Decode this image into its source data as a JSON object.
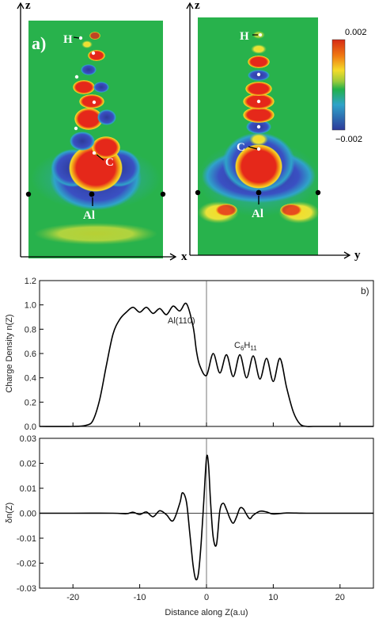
{
  "figure": {
    "panel_a": {
      "panel_label": "a)",
      "left_map": {
        "axis_vertical": "z",
        "axis_horizontal": "x",
        "atom_labels": {
          "h": "H",
          "c": "C",
          "al": "Al"
        }
      },
      "right_map": {
        "axis_vertical": "z",
        "axis_horizontal": "y",
        "atom_labels": {
          "h": "H",
          "c": "C",
          "al": "Al"
        }
      },
      "colorbar": {
        "max_label": "0.002",
        "min_label": "−0.002",
        "colors": [
          "#d62a14",
          "#f07a12",
          "#f4dc2a",
          "#9ccb3a",
          "#21b14b",
          "#2fa3c9",
          "#2e3a9a"
        ]
      },
      "map_colors": {
        "background": "#28b24c",
        "red": "#e5281a",
        "blue": "#3a50c2",
        "yellow": "#f4dc2a",
        "orange": "#f39a18"
      }
    },
    "panel_b": {
      "panel_label": "b)"
    }
  },
  "chart_data": [
    {
      "type": "line",
      "title": "",
      "xlabel": "",
      "ylabel": "Charge Density n(Z)",
      "xlim": [
        -25,
        25
      ],
      "ylim": [
        0,
        1.2
      ],
      "xticks": [
        -20,
        -10,
        0,
        10,
        20
      ],
      "yticks": [
        0.0,
        0.2,
        0.4,
        0.6,
        0.8,
        1.0,
        1.2
      ],
      "ytick_labels": [
        "0.0",
        "0.2",
        "0.4",
        "0.6",
        "0.8",
        "1.0",
        "1.2"
      ],
      "reference_line_x": 0,
      "annotations": [
        {
          "text": "Al(110)",
          "x": -7,
          "y": 1.06
        },
        {
          "text_parts": [
            "C",
            "6",
            "H",
            "11"
          ],
          "x": 6.7,
          "y": 0.62
        }
      ],
      "series": [
        {
          "x": [
            -25,
            -20,
            -18,
            -17,
            -16,
            -15,
            -14,
            -13,
            -12,
            -11,
            -10,
            -9,
            -8,
            -7,
            -6,
            -5,
            -4,
            -3,
            -2,
            -1.5,
            -1,
            0,
            1,
            2,
            3,
            4,
            5,
            6,
            7,
            8,
            9,
            10,
            11,
            12,
            13,
            14,
            15,
            16,
            20,
            25
          ],
          "y": [
            0,
            0,
            0.01,
            0.05,
            0.22,
            0.5,
            0.76,
            0.88,
            0.94,
            0.98,
            0.94,
            0.98,
            0.93,
            0.97,
            0.92,
            0.99,
            0.95,
            1.01,
            0.82,
            0.62,
            0.5,
            0.42,
            0.6,
            0.44,
            0.59,
            0.41,
            0.59,
            0.4,
            0.58,
            0.39,
            0.56,
            0.37,
            0.56,
            0.32,
            0.12,
            0.02,
            0,
            0,
            0,
            0
          ]
        }
      ]
    },
    {
      "type": "line",
      "title": "",
      "xlabel": "Distance along Z(a.u)",
      "ylabel": "δn(Z)",
      "xlim": [
        -25,
        25
      ],
      "ylim": [
        -0.03,
        0.03
      ],
      "xticks": [
        -20,
        -10,
        0,
        10,
        20
      ],
      "xtick_labels": [
        "-20",
        "-10",
        "0",
        "10",
        "20"
      ],
      "yticks": [
        -0.03,
        -0.02,
        -0.01,
        0.0,
        0.01,
        0.02,
        0.03
      ],
      "ytick_labels": [
        "-0.03",
        "-0.02",
        "-0.01",
        "0.00",
        "0.01",
        "0.02",
        "0.03"
      ],
      "reference_line_x": 0,
      "series": [
        {
          "x": [
            -25,
            -20,
            -14,
            -12,
            -11,
            -10,
            -9,
            -8,
            -7,
            -6,
            -5,
            -4,
            -3.6,
            -3,
            -2.5,
            -2,
            -1.6,
            -1.2,
            -0.8,
            -0.4,
            0,
            0.3,
            0.6,
            1,
            1.5,
            2,
            2.5,
            3,
            3.5,
            4,
            4.5,
            5,
            5.5,
            6,
            6.5,
            7,
            8,
            9,
            10,
            12,
            15,
            20,
            25
          ],
          "y": [
            0,
            0,
            0,
            -0.0002,
            0.0004,
            -0.0005,
            0.0005,
            -0.0014,
            0.001,
            -0.0006,
            -0.003,
            0.004,
            0.0082,
            0.0045,
            -0.008,
            -0.021,
            -0.0265,
            -0.024,
            -0.012,
            0.005,
            0.0222,
            0.0195,
            0.005,
            -0.0095,
            -0.0125,
            0.001,
            0.004,
            0.0015,
            -0.002,
            -0.004,
            -0.0015,
            0.002,
            0.0018,
            -0.0005,
            -0.0022,
            -0.0008,
            0.0008,
            0.0005,
            -0.0003,
            0.0001,
            0,
            0,
            0
          ]
        }
      ]
    }
  ]
}
